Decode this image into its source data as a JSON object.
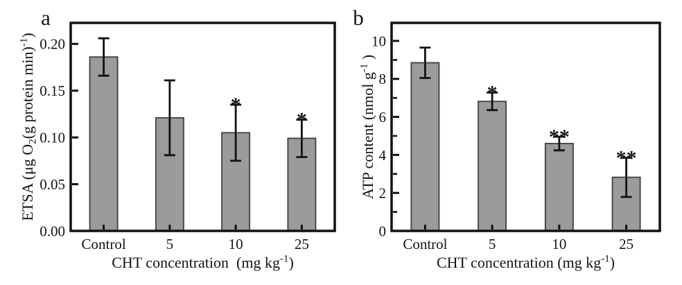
{
  "figure_type": "two-panel scientific bar chart",
  "colors": {
    "background": "#ffffff",
    "bar_fill": "#9b9b9b",
    "bar_edge": "#4a4a4a",
    "axis": "#111111",
    "error_bar": "#111111",
    "text": "#141414"
  },
  "chart_data": [
    {
      "panel_label": "a",
      "type": "bar",
      "categories": [
        "Control",
        "5",
        "10",
        "25"
      ],
      "values": [
        0.186,
        0.121,
        0.105,
        0.099
      ],
      "error_bars": [
        0.02,
        0.04,
        0.03,
        0.02
      ],
      "significance": [
        "",
        "",
        "*",
        "*"
      ],
      "title": "",
      "ylabel": "ETSA (μg O₂(g protein min)⁻¹)",
      "xlabel": "CHT concentration  (mg kg⁻¹)",
      "ylabel_parts": [
        {
          "t": "ETSA (μg O"
        },
        {
          "t": "2",
          "s": "sub"
        },
        {
          "t": "(g protein min)"
        },
        {
          "t": "-1",
          "s": "sup"
        },
        {
          "t": ")"
        }
      ],
      "xlabel_parts": [
        {
          "t": "CHT concentration  (mg kg"
        },
        {
          "t": "-1",
          "s": "sup"
        },
        {
          "t": ")"
        }
      ],
      "ylim": [
        0,
        0.2225
      ],
      "yticks": [
        0,
        0.05,
        0.1,
        0.15,
        0.2
      ],
      "ytick_labels": [
        "0.00",
        "0.05",
        "0.10",
        "0.15",
        "0.20"
      ],
      "minor_yticks": [],
      "grid": false,
      "legend": null
    },
    {
      "panel_label": "b",
      "type": "bar",
      "categories": [
        "Control",
        "5",
        "10",
        "25"
      ],
      "values": [
        8.85,
        6.82,
        4.6,
        2.82
      ],
      "error_bars": [
        0.8,
        0.46,
        0.36,
        1.03
      ],
      "significance": [
        "",
        "*",
        "**",
        "**"
      ],
      "title": "",
      "ylabel": "ATP content (nmol g⁻¹)",
      "xlabel": "CHT concentration (mg kg⁻¹)",
      "ylabel_parts": [
        {
          "t": "ATP content (nmol g"
        },
        {
          "t": "-1",
          "s": "sup"
        },
        {
          "t": " )"
        }
      ],
      "xlabel_parts": [
        {
          "t": "CHT concentration (mg kg"
        },
        {
          "t": "-1",
          "s": "sup"
        },
        {
          "t": ")"
        }
      ],
      "ylim": [
        0,
        10.95
      ],
      "yticks": [
        0,
        2,
        4,
        6,
        8,
        10
      ],
      "ytick_labels": [
        "0",
        "2",
        "4",
        "6",
        "8",
        "10"
      ],
      "minor_yticks": [
        1,
        3,
        5,
        7,
        9
      ],
      "grid": false,
      "legend": null
    }
  ]
}
